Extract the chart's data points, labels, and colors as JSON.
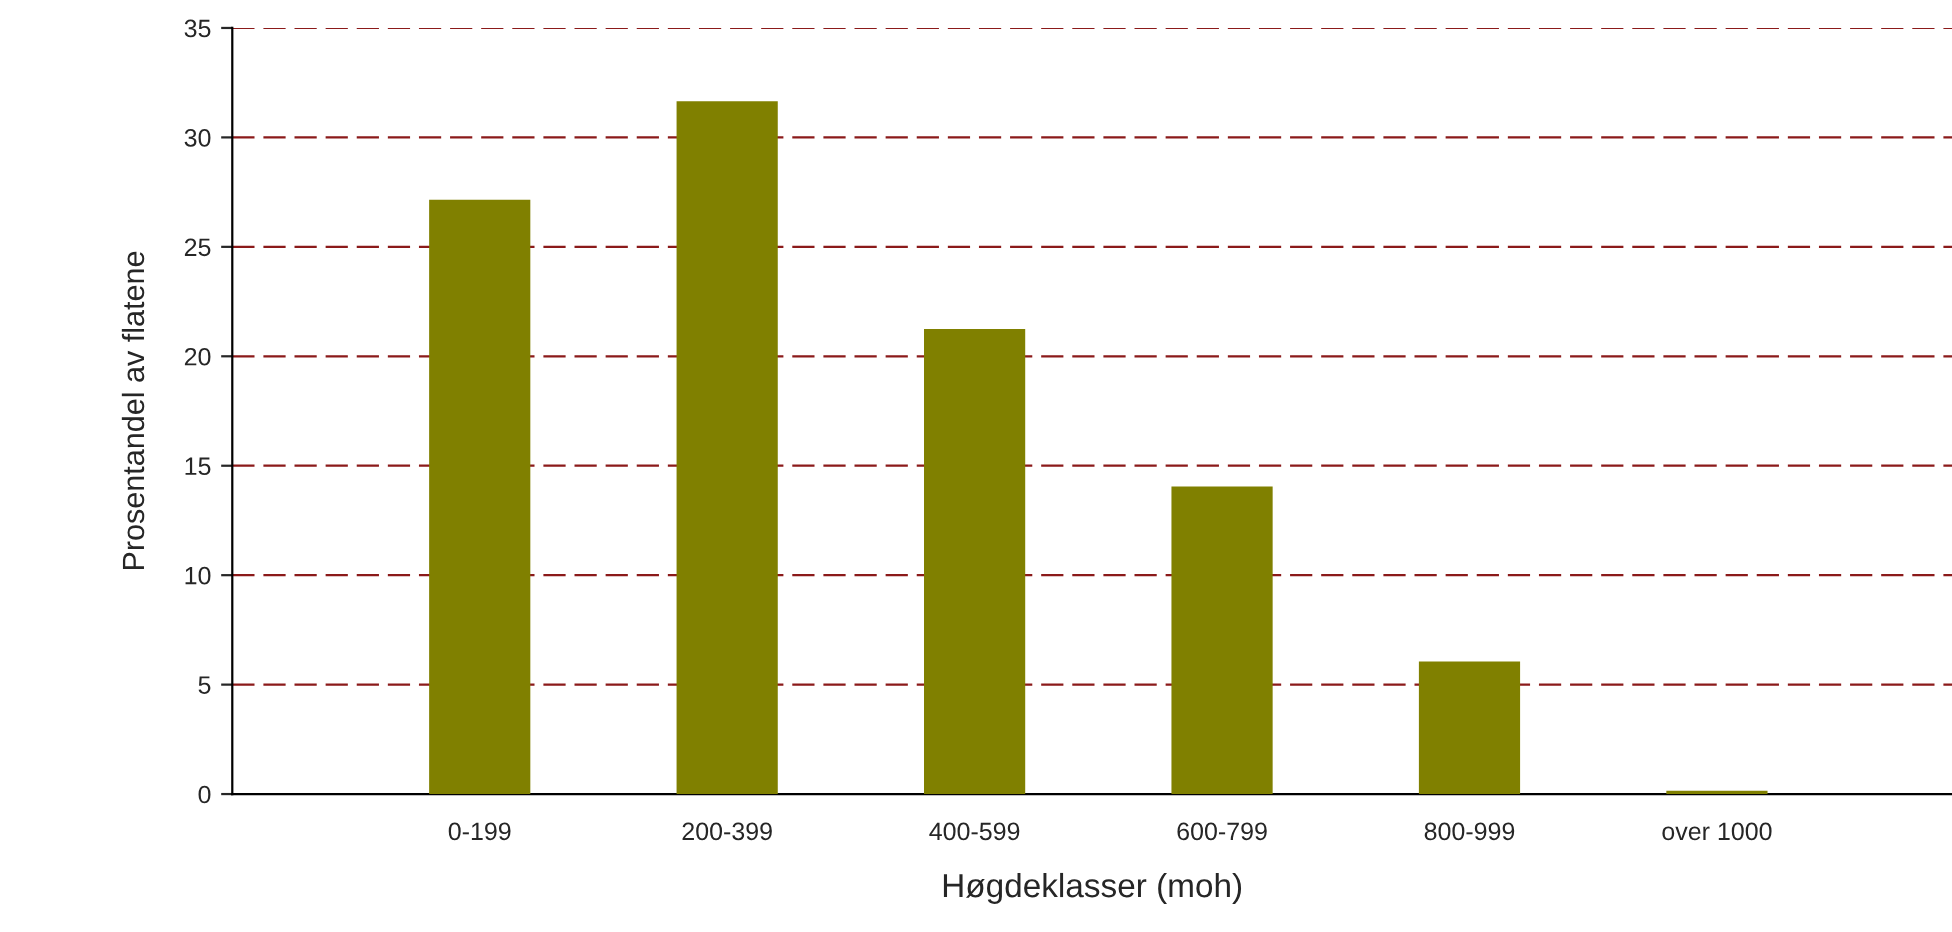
{
  "chart_data": {
    "type": "bar",
    "categories": [
      "0-199",
      "200-399",
      "400-599",
      "600-799",
      "800-999",
      "over 1000"
    ],
    "values": [
      27.1,
      31.6,
      21.2,
      14.0,
      6.0,
      0.1
    ],
    "color": "#808000",
    "xlabel": "Høgdeklasser (moh)",
    "ylabel": "Prosentandel av flatene",
    "ylim": [
      0,
      35
    ],
    "yticks": [
      0,
      5,
      10,
      15,
      20,
      25,
      30,
      35
    ],
    "grid": "y",
    "legend": false
  }
}
